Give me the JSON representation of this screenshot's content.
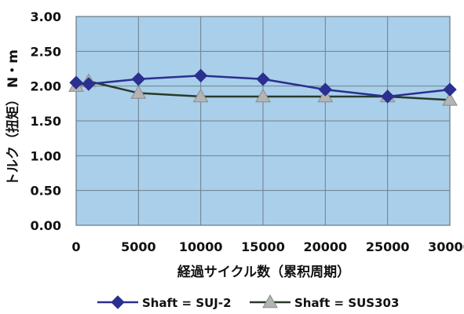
{
  "chart_data": {
    "type": "line",
    "title": "",
    "xlabel": "経過サイクル数（累积周期）",
    "ylabel": "トルク（扭矩） N・m",
    "x": [
      0,
      1000,
      5000,
      10000,
      15000,
      20000,
      25000,
      30000
    ],
    "x_ticks": [
      "0",
      "5000",
      "10000",
      "15000",
      "20000",
      "25000",
      "30000"
    ],
    "x_tick_values": [
      0,
      5000,
      10000,
      15000,
      20000,
      25000,
      30000
    ],
    "y_ticks": [
      "0.00",
      "0.50",
      "1.00",
      "1.50",
      "2.00",
      "2.50",
      "3.00"
    ],
    "y_tick_values": [
      0,
      0.5,
      1.0,
      1.5,
      2.0,
      2.5,
      3.0
    ],
    "xlim": [
      0,
      30000
    ],
    "ylim": [
      0,
      3.0
    ],
    "grid": true,
    "legend_position": "bottom",
    "plot_background": "#a9cfea",
    "series": [
      {
        "name": "Shaft = SUJ-2",
        "color": "#2b2f8f",
        "marker": "diamond",
        "values": [
          2.05,
          2.03,
          2.1,
          2.15,
          2.1,
          1.95,
          1.85,
          1.95
        ]
      },
      {
        "name": "Shaft = SUS303",
        "color": "#b4b4b4",
        "line_color": "#2a3a2a",
        "marker": "triangle",
        "values": [
          2.0,
          2.07,
          1.9,
          1.85,
          1.85,
          1.85,
          1.85,
          1.8
        ]
      }
    ]
  }
}
